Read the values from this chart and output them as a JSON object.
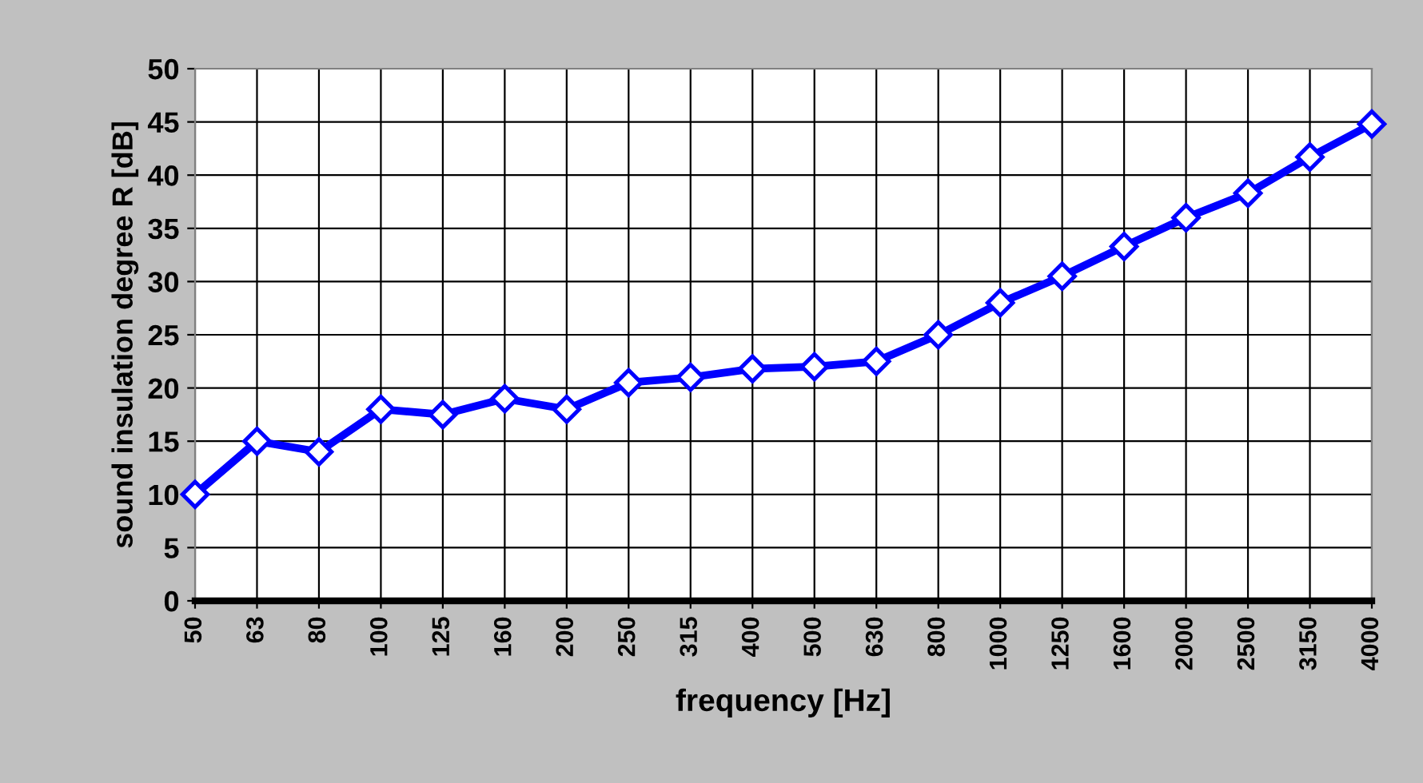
{
  "chart_data": {
    "type": "line",
    "xlabel": "frequency [Hz]",
    "ylabel": "sound insulation degree R [dB]",
    "categories": [
      "50",
      "63",
      "80",
      "100",
      "125",
      "160",
      "200",
      "250",
      "315",
      "400",
      "500",
      "630",
      "800",
      "1000",
      "1250",
      "1600",
      "2000",
      "2500",
      "3150",
      "4000"
    ],
    "series": [
      {
        "color": "#0000ff",
        "values": [
          10,
          15,
          14,
          18,
          17.5,
          19,
          18,
          20.5,
          21,
          21.8,
          22,
          22.5,
          25,
          28,
          30.5,
          33.3,
          36,
          38.3,
          41.7,
          44.8
        ]
      }
    ],
    "ylim": [
      0,
      50
    ],
    "yticks": [
      0,
      5,
      10,
      15,
      20,
      25,
      30,
      35,
      40,
      45,
      50
    ],
    "grid": true,
    "marker": "diamond",
    "line_style": "solid",
    "legend": false
  }
}
